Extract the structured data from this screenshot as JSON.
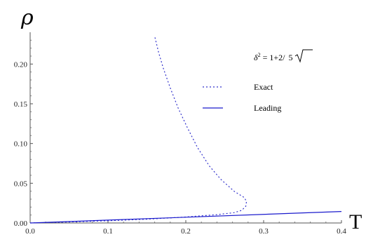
{
  "chart_data": {
    "type": "line",
    "xlabel": "T",
    "ylabel": "ρ",
    "xlim": [
      0,
      0.4
    ],
    "ylim": [
      0,
      0.24
    ],
    "x_ticks": [
      "0.0",
      "0.1",
      "0.2",
      "0.3",
      "0.4"
    ],
    "y_ticks": [
      "0.00",
      "0.05",
      "0.10",
      "0.15",
      "0.20"
    ],
    "grid": false,
    "legend_position": "top-right",
    "legend": {
      "title_prefix": "δ",
      "title_sup": "2",
      "title_body": " = 1+2/",
      "title_radicand": "5"
    },
    "series": [
      {
        "name": "Exact",
        "style": "dotted",
        "color": "#3333cc",
        "points": [
          [
            0.0,
            0.0
          ],
          [
            0.05,
            0.0012
          ],
          [
            0.1,
            0.0028
          ],
          [
            0.15,
            0.0048
          ],
          [
            0.2,
            0.0075
          ],
          [
            0.24,
            0.0105
          ],
          [
            0.262,
            0.013
          ],
          [
            0.272,
            0.016
          ],
          [
            0.277,
            0.021
          ],
          [
            0.278,
            0.027
          ],
          [
            0.275,
            0.032
          ],
          [
            0.262,
            0.04
          ],
          [
            0.245,
            0.055
          ],
          [
            0.23,
            0.072
          ],
          [
            0.215,
            0.095
          ],
          [
            0.202,
            0.12
          ],
          [
            0.19,
            0.145
          ],
          [
            0.18,
            0.17
          ],
          [
            0.171,
            0.195
          ],
          [
            0.165,
            0.215
          ],
          [
            0.16,
            0.235
          ]
        ]
      },
      {
        "name": "Leading",
        "style": "solid",
        "color": "#1a1acc",
        "points": [
          [
            0.0,
            0.0
          ],
          [
            0.4,
            0.0145
          ]
        ]
      }
    ]
  }
}
